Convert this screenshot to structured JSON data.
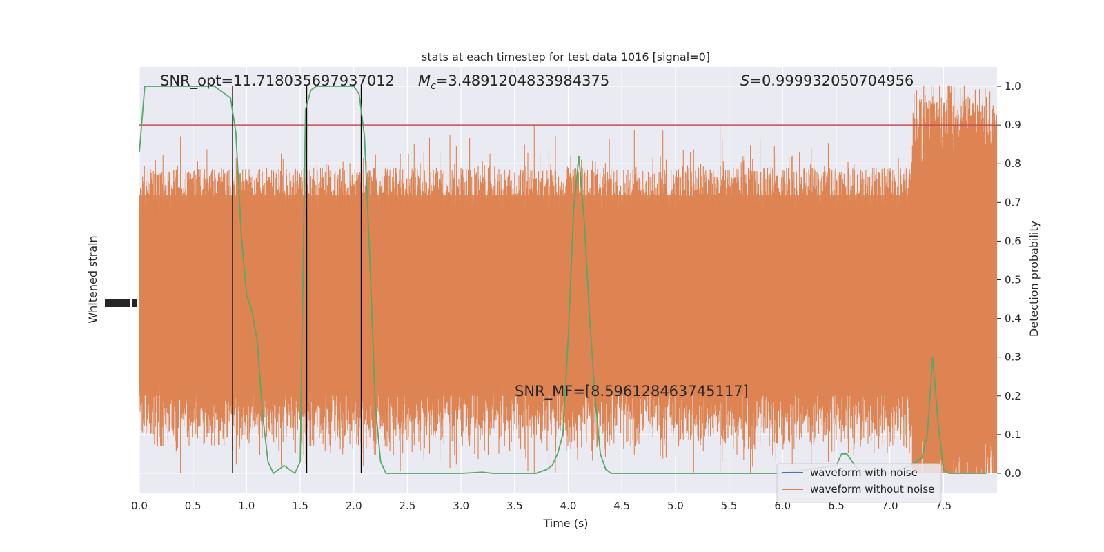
{
  "chart_data": {
    "type": "line",
    "title": "stats at each timestep for test data 1016 [signal=0]",
    "xlabel": "Time (s)",
    "ylabel_left": "Whitened strain",
    "ylabel_right": "Detection probability",
    "xlim": [
      0.0,
      8.0
    ],
    "ylim_right": [
      -0.05,
      1.05
    ],
    "x_ticks": [
      "0.0",
      "0.5",
      "1.0",
      "1.5",
      "2.0",
      "2.5",
      "3.0",
      "3.5",
      "4.0",
      "4.5",
      "5.0",
      "5.5",
      "6.0",
      "6.5",
      "7.0",
      "7.5"
    ],
    "y_ticks_right": [
      "0.0",
      "0.1",
      "0.2",
      "0.3",
      "0.4",
      "0.5",
      "0.6",
      "0.7",
      "0.8",
      "0.9",
      "1.0"
    ],
    "grid": true,
    "legend_position": "bottom-right",
    "series": [
      {
        "name": "waveform with noise",
        "color": "#4c72b0",
        "style": "line"
      },
      {
        "name": "waveform without noise",
        "color": "#dd8452",
        "style": "dense-noise",
        "note_range_right_axis": [
          0.0,
          1.0
        ]
      }
    ],
    "detection_probability": {
      "color": "#55a868",
      "x": [
        0.0,
        0.05,
        0.1,
        0.2,
        0.3,
        0.4,
        0.5,
        0.6,
        0.7,
        0.75,
        0.8,
        0.85,
        0.9,
        0.95,
        1.0,
        1.05,
        1.1,
        1.15,
        1.2,
        1.25,
        1.3,
        1.35,
        1.4,
        1.45,
        1.5,
        1.55,
        1.6,
        1.65,
        1.7,
        1.75,
        1.8,
        1.9,
        2.0,
        2.05,
        2.1,
        2.15,
        2.2,
        2.25,
        2.3,
        2.35,
        2.4,
        2.5,
        2.7,
        3.0,
        3.2,
        3.3,
        3.6,
        3.7,
        3.8,
        3.85,
        3.9,
        3.95,
        4.0,
        4.05,
        4.1,
        4.15,
        4.2,
        4.25,
        4.3,
        4.35,
        4.4,
        4.45,
        4.5,
        4.55,
        4.6,
        5.0,
        5.5,
        6.0,
        6.5,
        6.55,
        6.6,
        6.65,
        6.7,
        6.75,
        7.0,
        7.2,
        7.3,
        7.35,
        7.4,
        7.45,
        7.5,
        7.55,
        7.6,
        7.65,
        7.7,
        7.9
      ],
      "y": [
        0.83,
        1.0,
        1.0,
        1.0,
        1.0,
        1.0,
        1.0,
        1.0,
        1.0,
        0.99,
        0.98,
        0.97,
        0.88,
        0.62,
        0.46,
        0.42,
        0.34,
        0.15,
        0.03,
        0.0,
        0.01,
        0.02,
        0.01,
        0.0,
        0.03,
        0.94,
        0.99,
        1.0,
        1.0,
        1.0,
        1.0,
        1.0,
        1.0,
        0.98,
        0.87,
        0.55,
        0.18,
        0.03,
        0.0,
        0.0,
        0.0,
        0.0,
        0.0,
        0.0,
        0.003,
        0.0,
        0.0,
        0.0,
        0.01,
        0.02,
        0.05,
        0.1,
        0.35,
        0.68,
        0.82,
        0.65,
        0.4,
        0.2,
        0.05,
        0.01,
        0.0,
        0.0,
        0.0,
        0.0,
        0.0,
        0.0,
        0.0,
        0.0,
        0.02,
        0.05,
        0.05,
        0.03,
        0.01,
        0.005,
        0.0,
        0.02,
        0.04,
        0.1,
        0.3,
        0.13,
        0.01,
        0.0,
        0.0,
        0.0,
        0.0,
        0.0
      ]
    },
    "threshold": {
      "value": 0.9,
      "color": "#c44e52"
    },
    "event_markers_x": [
      0.87,
      1.56,
      2.07
    ],
    "annotations": {
      "snr_opt": "SNR_opt=11.718035697937012",
      "mc_symbol": "M",
      "mc_subscript": "c",
      "mc_value": "=3.4891204833984375",
      "s_symbol": "S",
      "s_value": "=0.999932050704956",
      "snr_mf": "SNR_MF=[8.596128463745117]"
    }
  }
}
